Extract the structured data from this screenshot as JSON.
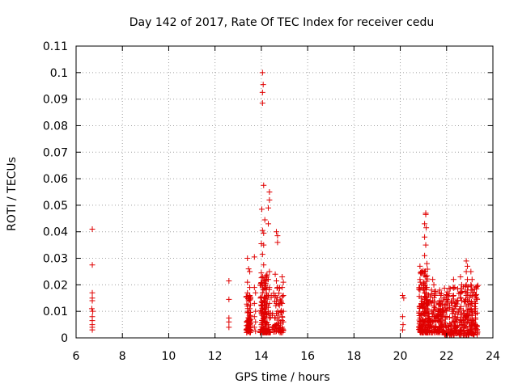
{
  "chart_data": {
    "type": "scatter",
    "title": "Day 142 of 2017, Rate Of TEC Index for receiver cedu",
    "xlabel": "GPS time / hours",
    "ylabel": "ROTI / TECUs",
    "xlim": [
      6,
      24
    ],
    "ylim": [
      0,
      0.11
    ],
    "xticks": [
      6,
      8,
      10,
      12,
      14,
      16,
      18,
      20,
      22,
      24
    ],
    "yticks": [
      0,
      0.01,
      0.02,
      0.03,
      0.04,
      0.05,
      0.06,
      0.07,
      0.08,
      0.09,
      0.1,
      0.11
    ],
    "xtick_labels": [
      "6",
      "8",
      "10",
      "12",
      "14",
      "16",
      "18",
      "20",
      "22",
      "24"
    ],
    "ytick_labels": [
      "0",
      "0.01",
      "0.02",
      "0.03",
      "0.04",
      "0.05",
      "0.06",
      "0.07",
      "0.08",
      "0.09",
      "0.1",
      "0.11"
    ],
    "grid": true,
    "marker": "plus",
    "color": "#e00000",
    "series": [
      {
        "name": "ROTI",
        "points": [
          [
            6.7,
            0.041
          ],
          [
            6.7,
            0.0275
          ],
          [
            6.7,
            0.017
          ],
          [
            6.7,
            0.015
          ],
          [
            6.7,
            0.014
          ],
          [
            6.68,
            0.011
          ],
          [
            6.72,
            0.01
          ],
          [
            6.7,
            0.008
          ],
          [
            6.7,
            0.0065
          ],
          [
            6.7,
            0.005
          ],
          [
            6.7,
            0.004
          ],
          [
            6.7,
            0.003
          ],
          [
            12.6,
            0.0215
          ],
          [
            12.6,
            0.0145
          ],
          [
            12.6,
            0.0075
          ],
          [
            12.6,
            0.006
          ],
          [
            12.6,
            0.004
          ],
          [
            13.4,
            0.03
          ],
          [
            13.45,
            0.026
          ],
          [
            13.5,
            0.025
          ],
          [
            13.4,
            0.021
          ],
          [
            13.5,
            0.019
          ],
          [
            13.4,
            0.017
          ],
          [
            13.5,
            0.016
          ],
          [
            13.45,
            0.014
          ],
          [
            13.4,
            0.012
          ],
          [
            13.5,
            0.011
          ],
          [
            13.4,
            0.0095
          ],
          [
            13.5,
            0.008
          ],
          [
            13.45,
            0.007
          ],
          [
            13.4,
            0.006
          ],
          [
            13.5,
            0.005
          ],
          [
            13.45,
            0.004
          ],
          [
            13.7,
            0.0305
          ],
          [
            13.7,
            0.019
          ],
          [
            13.75,
            0.017
          ],
          [
            13.7,
            0.013
          ],
          [
            13.75,
            0.01
          ],
          [
            13.7,
            0.008
          ],
          [
            13.75,
            0.006
          ],
          [
            13.7,
            0.004
          ],
          [
            13.75,
            0.0025
          ],
          [
            14.05,
            0.1
          ],
          [
            14.08,
            0.0955
          ],
          [
            14.05,
            0.0925
          ],
          [
            14.05,
            0.0885
          ],
          [
            14.1,
            0.0575
          ],
          [
            14.02,
            0.0485
          ],
          [
            14.15,
            0.0445
          ],
          [
            14.05,
            0.0405
          ],
          [
            14.1,
            0.0395
          ],
          [
            14.0,
            0.0355
          ],
          [
            14.1,
            0.035
          ],
          [
            14.05,
            0.0315
          ],
          [
            14.1,
            0.0275
          ],
          [
            14.0,
            0.0245
          ],
          [
            14.05,
            0.023
          ],
          [
            14.1,
            0.0215
          ],
          [
            14.0,
            0.02
          ],
          [
            14.15,
            0.0185
          ],
          [
            14.05,
            0.017
          ],
          [
            14.0,
            0.0155
          ],
          [
            14.1,
            0.014
          ],
          [
            14.05,
            0.0125
          ],
          [
            14.15,
            0.011
          ],
          [
            14.0,
            0.0095
          ],
          [
            14.1,
            0.008
          ],
          [
            14.05,
            0.0065
          ],
          [
            14.0,
            0.005
          ],
          [
            14.1,
            0.0035
          ],
          [
            14.35,
            0.055
          ],
          [
            14.35,
            0.052
          ],
          [
            14.3,
            0.049
          ],
          [
            14.3,
            0.043
          ],
          [
            14.35,
            0.025
          ],
          [
            14.3,
            0.022
          ],
          [
            14.35,
            0.019
          ],
          [
            14.3,
            0.016
          ],
          [
            14.35,
            0.013
          ],
          [
            14.3,
            0.01
          ],
          [
            14.35,
            0.0075
          ],
          [
            14.3,
            0.005
          ],
          [
            14.65,
            0.04
          ],
          [
            14.7,
            0.0385
          ],
          [
            14.7,
            0.036
          ],
          [
            14.6,
            0.024
          ],
          [
            14.65,
            0.0215
          ],
          [
            14.7,
            0.019
          ],
          [
            14.6,
            0.016
          ],
          [
            14.65,
            0.013
          ],
          [
            14.7,
            0.01
          ],
          [
            14.6,
            0.0075
          ],
          [
            14.65,
            0.005
          ],
          [
            14.7,
            0.0035
          ],
          [
            14.9,
            0.023
          ],
          [
            14.95,
            0.021
          ],
          [
            14.9,
            0.019
          ],
          [
            14.95,
            0.016
          ],
          [
            14.9,
            0.013
          ],
          [
            14.95,
            0.01
          ],
          [
            14.9,
            0.008
          ],
          [
            14.95,
            0.006
          ],
          [
            14.9,
            0.004
          ],
          [
            14.95,
            0.003
          ],
          [
            20.1,
            0.016
          ],
          [
            20.15,
            0.015
          ],
          [
            20.1,
            0.008
          ],
          [
            20.12,
            0.005
          ],
          [
            20.1,
            0.003
          ],
          [
            20.85,
            0.027
          ],
          [
            20.9,
            0.025
          ],
          [
            20.85,
            0.022
          ],
          [
            20.9,
            0.02
          ],
          [
            20.85,
            0.018
          ],
          [
            20.9,
            0.015
          ],
          [
            20.85,
            0.012
          ],
          [
            20.9,
            0.009
          ],
          [
            20.85,
            0.006
          ],
          [
            20.9,
            0.004
          ],
          [
            21.1,
            0.047
          ],
          [
            21.1,
            0.0465
          ],
          [
            21.05,
            0.043
          ],
          [
            21.12,
            0.0415
          ],
          [
            21.05,
            0.038
          ],
          [
            21.1,
            0.035
          ],
          [
            21.05,
            0.031
          ],
          [
            21.15,
            0.028
          ],
          [
            21.05,
            0.025
          ],
          [
            21.1,
            0.023
          ],
          [
            21.0,
            0.021
          ],
          [
            21.15,
            0.019
          ],
          [
            21.05,
            0.017
          ],
          [
            21.1,
            0.015
          ],
          [
            21.0,
            0.013
          ],
          [
            21.15,
            0.011
          ],
          [
            21.05,
            0.009
          ],
          [
            21.1,
            0.007
          ],
          [
            21.0,
            0.005
          ],
          [
            21.15,
            0.003
          ],
          [
            21.4,
            0.022
          ],
          [
            21.45,
            0.02
          ],
          [
            21.35,
            0.018
          ],
          [
            21.5,
            0.016
          ],
          [
            21.4,
            0.014
          ],
          [
            21.45,
            0.012
          ],
          [
            21.35,
            0.01
          ],
          [
            21.5,
            0.008
          ],
          [
            21.4,
            0.006
          ],
          [
            21.45,
            0.004
          ],
          [
            21.7,
            0.018
          ],
          [
            21.75,
            0.016
          ],
          [
            21.7,
            0.014
          ],
          [
            21.75,
            0.012
          ],
          [
            21.7,
            0.01
          ],
          [
            21.75,
            0.008
          ],
          [
            21.7,
            0.006
          ],
          [
            21.75,
            0.004
          ],
          [
            21.7,
            0.002
          ],
          [
            22.3,
            0.022
          ],
          [
            22.35,
            0.019
          ],
          [
            22.3,
            0.016
          ],
          [
            22.35,
            0.013
          ],
          [
            22.3,
            0.01
          ],
          [
            22.35,
            0.008
          ],
          [
            22.3,
            0.006
          ],
          [
            22.35,
            0.004
          ],
          [
            22.3,
            0.002
          ],
          [
            22.6,
            0.023
          ],
          [
            22.65,
            0.02
          ],
          [
            22.6,
            0.017
          ],
          [
            22.65,
            0.014
          ],
          [
            22.6,
            0.011
          ],
          [
            22.65,
            0.009
          ],
          [
            22.6,
            0.007
          ],
          [
            22.65,
            0.005
          ],
          [
            22.6,
            0.003
          ],
          [
            22.85,
            0.029
          ],
          [
            22.9,
            0.027
          ],
          [
            22.85,
            0.025
          ],
          [
            22.9,
            0.022
          ],
          [
            22.85,
            0.02
          ],
          [
            22.9,
            0.018
          ],
          [
            22.85,
            0.016
          ],
          [
            22.9,
            0.014
          ],
          [
            22.85,
            0.012
          ],
          [
            22.9,
            0.01
          ],
          [
            22.85,
            0.008
          ],
          [
            22.9,
            0.006
          ],
          [
            22.85,
            0.004
          ],
          [
            22.9,
            0.002
          ],
          [
            23.05,
            0.025
          ],
          [
            23.1,
            0.022
          ],
          [
            23.05,
            0.02
          ],
          [
            23.1,
            0.018
          ],
          [
            23.05,
            0.016
          ],
          [
            23.1,
            0.013
          ],
          [
            23.05,
            0.011
          ],
          [
            23.1,
            0.009
          ],
          [
            23.05,
            0.007
          ],
          [
            23.1,
            0.005
          ],
          [
            23.05,
            0.003
          ],
          [
            23.25,
            0.016
          ],
          [
            23.25,
            0.013
          ],
          [
            23.25,
            0.011
          ],
          [
            23.25,
            0.009
          ],
          [
            23.25,
            0.007
          ],
          [
            23.25,
            0.005
          ],
          [
            23.25,
            0.003
          ]
        ]
      }
    ],
    "dense_clusters": [
      {
        "x_range": [
          13.35,
          13.55
        ],
        "y_range": [
          0.002,
          0.018
        ],
        "count": 60
      },
      {
        "x_range": [
          13.95,
          14.25
        ],
        "y_range": [
          0.002,
          0.024
        ],
        "count": 120
      },
      {
        "x_range": [
          14.25,
          14.95
        ],
        "y_range": [
          0.002,
          0.02
        ],
        "count": 80
      },
      {
        "x_range": [
          20.8,
          21.2
        ],
        "y_range": [
          0.002,
          0.026
        ],
        "count": 140
      },
      {
        "x_range": [
          21.2,
          21.9
        ],
        "y_range": [
          0.002,
          0.018
        ],
        "count": 140
      },
      {
        "x_range": [
          21.9,
          23.35
        ],
        "y_range": [
          0.001,
          0.02
        ],
        "count": 260
      }
    ]
  }
}
